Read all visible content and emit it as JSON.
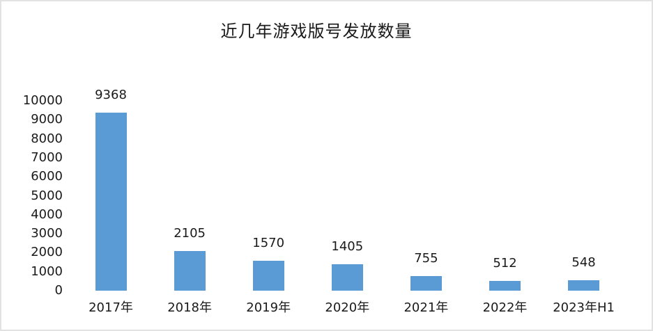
{
  "page": {
    "background": "#ffffff",
    "frame_border_color": "#e2e2e2"
  },
  "chart_data": {
    "type": "bar",
    "title": "近几年游戏版号发放数量",
    "categories": [
      "2017年",
      "2018年",
      "2019年",
      "2020年",
      "2021年",
      "2022年",
      "2023年H1"
    ],
    "values": [
      9368,
      2105,
      1570,
      1405,
      755,
      512,
      548
    ],
    "xlabel": "",
    "ylabel": "",
    "ylim": [
      0,
      10000
    ],
    "y_tick_step": 1000,
    "y_tick_labels": [
      "0",
      "1000",
      "2000",
      "3000",
      "4000",
      "5000",
      "6000",
      "7000",
      "8000",
      "9000",
      "10000"
    ],
    "bar_color": "#5B9BD5",
    "text_color": "#1a1a1a",
    "grid": false,
    "legend": false,
    "data_labels": "outside-end"
  }
}
